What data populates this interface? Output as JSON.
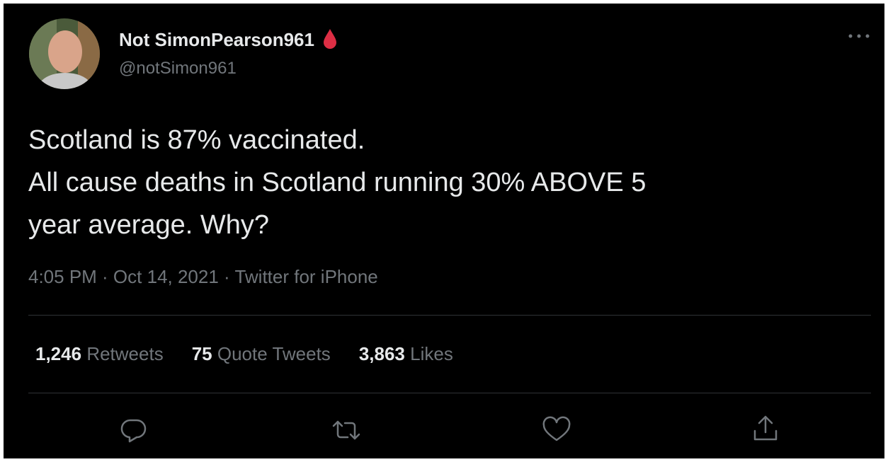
{
  "user": {
    "name": "Not SimonPearson961",
    "handle": "@notSimon961"
  },
  "tweet": {
    "lines": [
      "Scotland is 87% vaccinated.",
      "All cause deaths in Scotland running 30% ABOVE 5",
      "year average. Why?"
    ],
    "timestamp": "4:05 PM · Oct 14, 2021 · Twitter for iPhone"
  },
  "stats": [
    {
      "count": "1,246",
      "label": "Retweets"
    },
    {
      "count": "75",
      "label": "Quote Tweets"
    },
    {
      "count": "3,863",
      "label": "Likes"
    }
  ]
}
